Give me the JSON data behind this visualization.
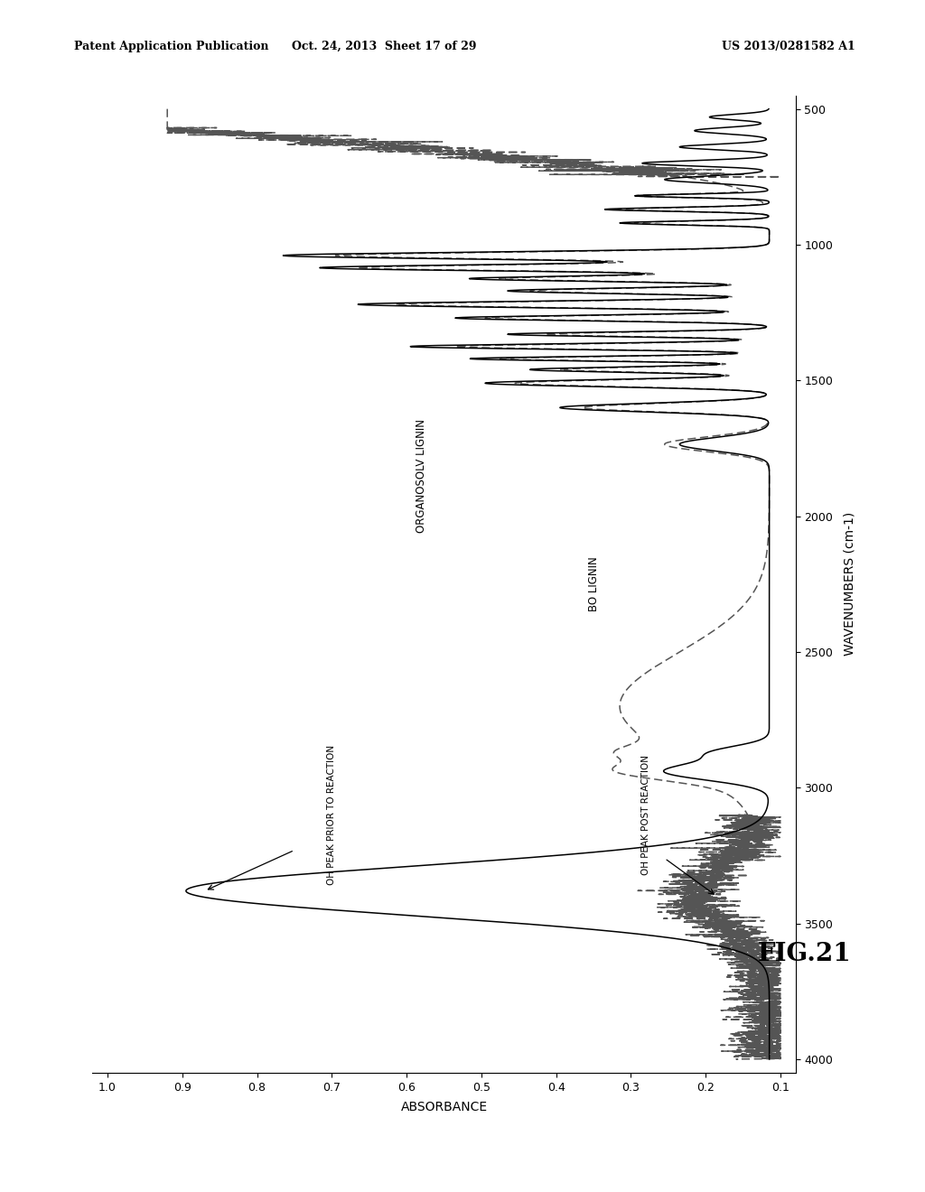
{
  "title": "FIG.21",
  "xlabel_rotated": "WAVENUMBERS (cm-1)",
  "ylabel_rotated": "ABSORBANCE",
  "header_left": "Patent Application Publication",
  "header_mid": "Oct. 24, 2013  Sheet 17 of 29",
  "header_right": "US 2013/0281582 A1",
  "label_organosolv": "ORGANOSOLV LIGNIN",
  "label_bo": "BO LIGNIN",
  "annotation1": "OH PEAK PRIOR TO REACTION",
  "annotation2": "OH PEAK POST REACTION",
  "solid_color": "#000000",
  "dashed_color": "#555555",
  "background": "#ffffff",
  "plot_xlim_abs": [
    0.08,
    1.02
  ],
  "plot_ylim_wn": [
    450,
    4050
  ],
  "abs_ticks": [
    0.1,
    0.2,
    0.3,
    0.4,
    0.5,
    0.6,
    0.7,
    0.8,
    0.9,
    1.0
  ],
  "wn_ticks": [
    500,
    1000,
    1500,
    2000,
    2500,
    3000,
    3500,
    4000
  ]
}
